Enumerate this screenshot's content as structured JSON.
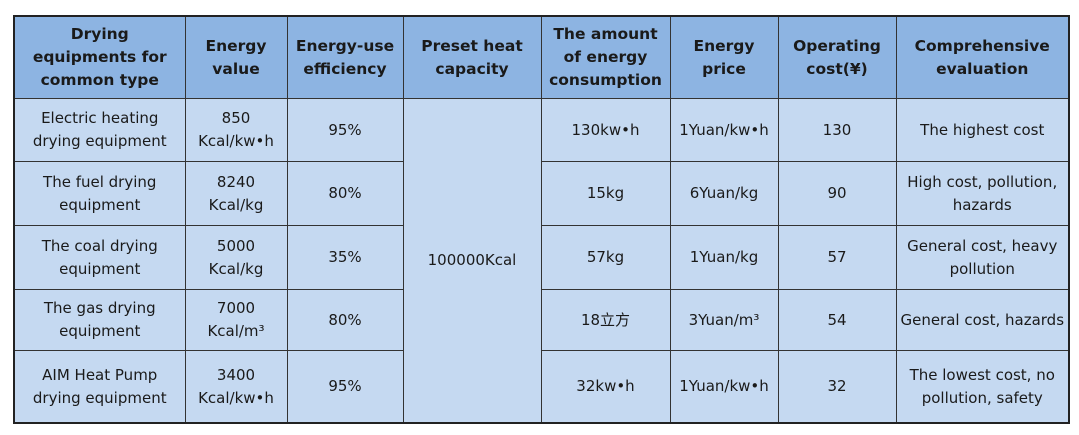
{
  "headers": [
    "Drying equipments for common type",
    "Energy value",
    "Energy-use efficiency",
    "Preset heat capacity",
    "The amount of energy consumption",
    "Energy price",
    "Operating cost(¥)",
    "Comprehensive evaluation"
  ],
  "preset_heat_capacity": "100000Kcal",
  "rows": [
    {
      "type": "Electric heating drying equipment",
      "energy_value": "850 Kcal/kw•h",
      "efficiency": "95%",
      "consumption": "130kw•h",
      "price": "1Yuan/kw•h",
      "cost": "130",
      "evaluation": "The highest cost"
    },
    {
      "type": "The fuel drying equipment",
      "energy_value": "8240 Kcal/kg",
      "efficiency": "80%",
      "consumption": "15kg",
      "price": "6Yuan/kg",
      "cost": "90",
      "evaluation": "High cost, pollution, hazards"
    },
    {
      "type": "The coal drying equipment",
      "energy_value": "5000 Kcal/kg",
      "efficiency": "35%",
      "consumption": "57kg",
      "price": "1Yuan/kg",
      "cost": "57",
      "evaluation": "General cost, heavy pollution"
    },
    {
      "type": "The gas drying equipment",
      "energy_value": "7000 Kcal/m³",
      "efficiency": "80%",
      "consumption": "18立方",
      "price": "3Yuan/m³",
      "cost": "54",
      "evaluation": "General cost, hazards"
    },
    {
      "type": "AIM Heat Pump drying equipment",
      "energy_value": "3400 Kcal/kw•h",
      "efficiency": "95%",
      "consumption": "32kw•h",
      "price": "1Yuan/kw•h",
      "cost": "32",
      "evaluation": "The lowest cost, no pollution, safety"
    }
  ]
}
